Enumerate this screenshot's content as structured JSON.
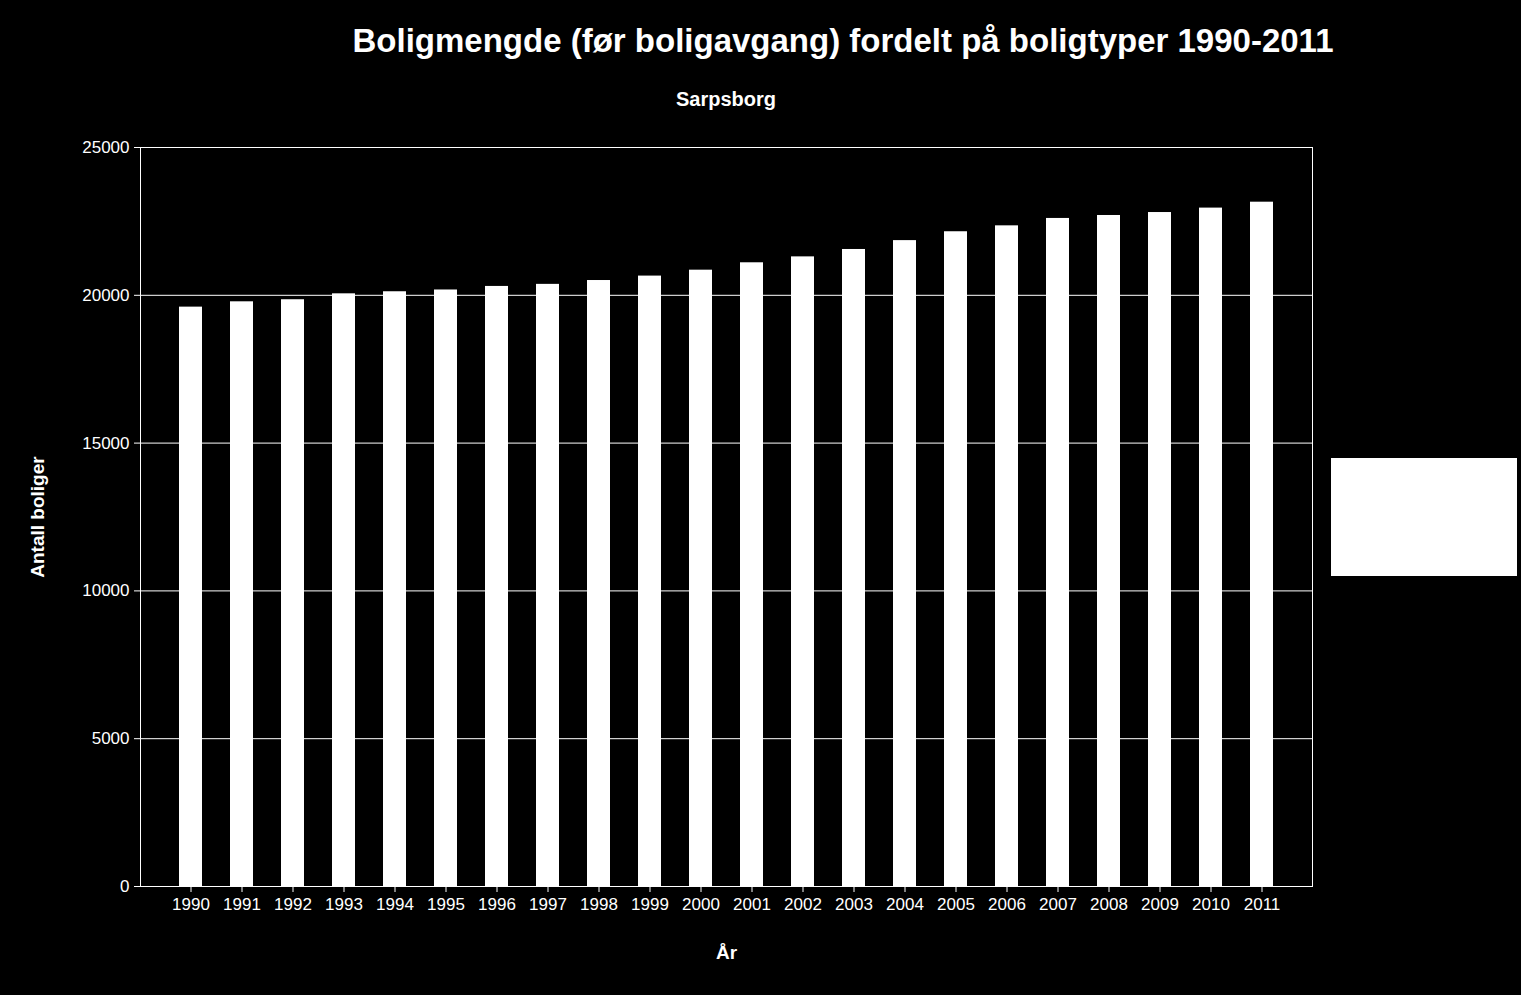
{
  "chart_data": {
    "type": "bar",
    "title": "Boligmengde (før boligavgang) fordelt på boligtyper 1990-2011",
    "subtitle": "Sarpsborg",
    "x_label": "År",
    "y_label": "Antall boliger",
    "categories": [
      "1990",
      "1991",
      "1992",
      "1993",
      "1994",
      "1995",
      "1996",
      "1997",
      "1998",
      "1999",
      "2000",
      "2001",
      "2002",
      "2003",
      "2004",
      "2005",
      "2006",
      "2007",
      "2008",
      "2009",
      "2010",
      "2011"
    ],
    "values": [
      19600,
      19780,
      19850,
      20050,
      20120,
      20180,
      20300,
      20370,
      20500,
      20650,
      20850,
      21100,
      21300,
      21550,
      21850,
      22150,
      22350,
      22600,
      22700,
      22800,
      22950,
      23150
    ],
    "color": "#ffffff",
    "ylim": [
      0,
      25000
    ],
    "yticks": [
      0,
      5000,
      10000,
      15000,
      20000,
      25000
    ],
    "grid": true
  }
}
